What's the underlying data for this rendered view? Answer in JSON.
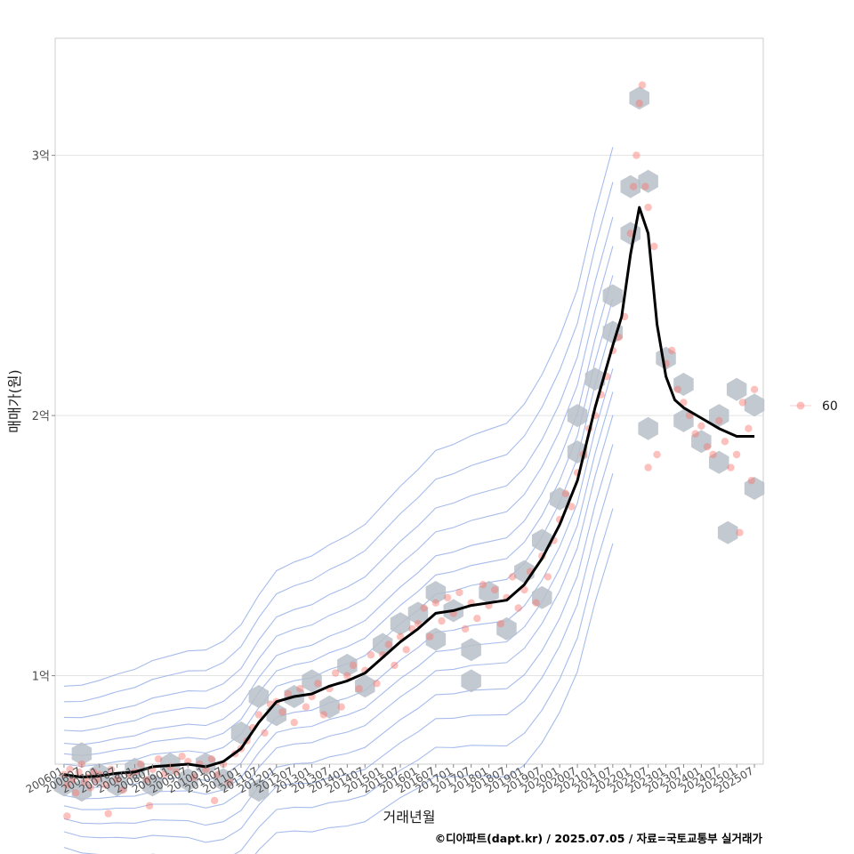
{
  "chart_data": {
    "type": "scatter",
    "xlabel": "거래년월",
    "ylabel": "매매가(원)",
    "caption": "©디아파트(dapt.kr) / 2025.07.05 / 자료=국토교통부 실거래가",
    "x_tick_labels": [
      "200601",
      "200607",
      "200701",
      "200707",
      "200801",
      "200807",
      "200901",
      "200907",
      "201001",
      "201007",
      "201101",
      "201107",
      "201201",
      "201207",
      "201301",
      "201307",
      "201401",
      "201407",
      "201501",
      "201507",
      "201601",
      "201607",
      "201701",
      "201707",
      "201801",
      "201807",
      "201901",
      "201907",
      "202001",
      "202007",
      "202101",
      "202107",
      "202201",
      "202207",
      "202301",
      "202307",
      "202401",
      "202407",
      "202501",
      "202507"
    ],
    "y_ticks": [
      {
        "value": 100000000,
        "label": "1억"
      },
      {
        "value": 200000000,
        "label": "2억"
      },
      {
        "value": 300000000,
        "label": "3억"
      }
    ],
    "xlim": [
      "2005-10",
      "2025-10"
    ],
    "ylim": [
      66000000,
      345000000
    ],
    "grid": true,
    "legend_position": "right",
    "legend": [
      {
        "name": "60",
        "color": "#f8766d"
      }
    ],
    "colors": {
      "points": "#f8766d",
      "trend": "#000000",
      "hex": "#b8c0c8",
      "contour": "#8aa6e6"
    },
    "trend_line": {
      "x": [
        "2006-01",
        "2006-07",
        "2007-01",
        "2007-07",
        "2008-01",
        "2008-07",
        "2009-01",
        "2009-07",
        "2010-01",
        "2010-07",
        "2011-01",
        "2011-07",
        "2012-01",
        "2012-07",
        "2013-01",
        "2013-07",
        "2014-01",
        "2014-07",
        "2015-01",
        "2015-07",
        "2016-01",
        "2016-07",
        "2017-01",
        "2017-07",
        "2018-01",
        "2018-07",
        "2019-01",
        "2019-07",
        "2020-01",
        "2020-07",
        "2021-01",
        "2021-07",
        "2021-10",
        "2022-01",
        "2022-04",
        "2022-07",
        "2022-10",
        "2023-01",
        "2023-04",
        "2023-07",
        "2024-01",
        "2024-07",
        "2025-01",
        "2025-07"
      ],
      "y": [
        62000000,
        61000000,
        61500000,
        62500000,
        63000000,
        65000000,
        65500000,
        66000000,
        65000000,
        67000000,
        72000000,
        82000000,
        90000000,
        92000000,
        93000000,
        96000000,
        98000000,
        101000000,
        107000000,
        113000000,
        118000000,
        124000000,
        125000000,
        127000000,
        128000000,
        129000000,
        135000000,
        145000000,
        158000000,
        175000000,
        203000000,
        227000000,
        238000000,
        262000000,
        280000000,
        270000000,
        235000000,
        215000000,
        206000000,
        203000000,
        199000000,
        195000000,
        192000000,
        192000000
      ]
    },
    "series": [
      {
        "name": "60",
        "points": [
          {
            "x": "2006-01",
            "y": 62000000
          },
          {
            "x": "2006-02",
            "y": 58000000
          },
          {
            "x": "2006-03",
            "y": 64000000
          },
          {
            "x": "2006-04",
            "y": 60000000
          },
          {
            "x": "2006-05",
            "y": 55000000
          },
          {
            "x": "2006-06",
            "y": 63000000
          },
          {
            "x": "2006-07",
            "y": 66000000
          },
          {
            "x": "2006-08",
            "y": 59000000
          },
          {
            "x": "2006-09",
            "y": 61000000
          },
          {
            "x": "2006-10",
            "y": 57000000
          },
          {
            "x": "2006-11",
            "y": 63000000
          },
          {
            "x": "2006-12",
            "y": 60000000
          },
          {
            "x": "2006-02",
            "y": 46000000
          },
          {
            "x": "2007-01",
            "y": 62000000
          },
          {
            "x": "2007-03",
            "y": 58000000
          },
          {
            "x": "2007-05",
            "y": 64000000
          },
          {
            "x": "2007-07",
            "y": 60000000
          },
          {
            "x": "2007-09",
            "y": 56000000
          },
          {
            "x": "2007-11",
            "y": 62000000
          },
          {
            "x": "2007-04",
            "y": 47000000
          },
          {
            "x": "2008-01",
            "y": 63000000
          },
          {
            "x": "2008-03",
            "y": 66000000
          },
          {
            "x": "2008-05",
            "y": 60000000
          },
          {
            "x": "2008-07",
            "y": 64000000
          },
          {
            "x": "2008-09",
            "y": 68000000
          },
          {
            "x": "2008-11",
            "y": 62000000
          },
          {
            "x": "2008-06",
            "y": 50000000
          },
          {
            "x": "2009-01",
            "y": 65000000
          },
          {
            "x": "2009-03",
            "y": 63000000
          },
          {
            "x": "2009-05",
            "y": 69000000
          },
          {
            "x": "2009-07",
            "y": 67000000
          },
          {
            "x": "2009-09",
            "y": 61000000
          },
          {
            "x": "2009-11",
            "y": 66000000
          },
          {
            "x": "2010-01",
            "y": 64000000
          },
          {
            "x": "2010-03",
            "y": 68000000
          },
          {
            "x": "2010-05",
            "y": 62000000
          },
          {
            "x": "2010-07",
            "y": 66000000
          },
          {
            "x": "2010-09",
            "y": 59000000
          },
          {
            "x": "2010-11",
            "y": 70000000
          },
          {
            "x": "2010-04",
            "y": 52000000
          },
          {
            "x": "2011-01",
            "y": 72000000
          },
          {
            "x": "2011-03",
            "y": 75000000
          },
          {
            "x": "2011-05",
            "y": 80000000
          },
          {
            "x": "2011-07",
            "y": 85000000
          },
          {
            "x": "2011-09",
            "y": 78000000
          },
          {
            "x": "2011-11",
            "y": 89000000
          },
          {
            "x": "2012-01",
            "y": 90000000
          },
          {
            "x": "2012-03",
            "y": 86000000
          },
          {
            "x": "2012-05",
            "y": 93000000
          },
          {
            "x": "2012-07",
            "y": 82000000
          },
          {
            "x": "2012-09",
            "y": 95000000
          },
          {
            "x": "2012-11",
            "y": 88000000
          },
          {
            "x": "2013-01",
            "y": 92000000
          },
          {
            "x": "2013-03",
            "y": 97000000
          },
          {
            "x": "2013-05",
            "y": 85000000
          },
          {
            "x": "2013-07",
            "y": 95000000
          },
          {
            "x": "2013-09",
            "y": 101000000
          },
          {
            "x": "2013-11",
            "y": 88000000
          },
          {
            "x": "2014-01",
            "y": 100000000
          },
          {
            "x": "2014-03",
            "y": 104000000
          },
          {
            "x": "2014-05",
            "y": 95000000
          },
          {
            "x": "2014-07",
            "y": 102000000
          },
          {
            "x": "2014-09",
            "y": 108000000
          },
          {
            "x": "2014-11",
            "y": 97000000
          },
          {
            "x": "2015-01",
            "y": 108000000
          },
          {
            "x": "2015-03",
            "y": 112000000
          },
          {
            "x": "2015-05",
            "y": 104000000
          },
          {
            "x": "2015-07",
            "y": 115000000
          },
          {
            "x": "2015-09",
            "y": 110000000
          },
          {
            "x": "2015-11",
            "y": 118000000
          },
          {
            "x": "2016-01",
            "y": 120000000
          },
          {
            "x": "2016-03",
            "y": 126000000
          },
          {
            "x": "2016-05",
            "y": 115000000
          },
          {
            "x": "2016-07",
            "y": 128000000
          },
          {
            "x": "2016-09",
            "y": 121000000
          },
          {
            "x": "2016-11",
            "y": 130000000
          },
          {
            "x": "2017-01",
            "y": 124000000
          },
          {
            "x": "2017-03",
            "y": 132000000
          },
          {
            "x": "2017-05",
            "y": 118000000
          },
          {
            "x": "2017-07",
            "y": 128000000
          },
          {
            "x": "2017-09",
            "y": 122000000
          },
          {
            "x": "2017-11",
            "y": 135000000
          },
          {
            "x": "2018-01",
            "y": 127000000
          },
          {
            "x": "2018-03",
            "y": 133000000
          },
          {
            "x": "2018-05",
            "y": 120000000
          },
          {
            "x": "2018-07",
            "y": 130000000
          },
          {
            "x": "2018-09",
            "y": 138000000
          },
          {
            "x": "2018-11",
            "y": 126000000
          },
          {
            "x": "2019-01",
            "y": 133000000
          },
          {
            "x": "2019-03",
            "y": 140000000
          },
          {
            "x": "2019-05",
            "y": 128000000
          },
          {
            "x": "2019-07",
            "y": 146000000
          },
          {
            "x": "2019-09",
            "y": 138000000
          },
          {
            "x": "2019-11",
            "y": 152000000
          },
          {
            "x": "2020-01",
            "y": 160000000
          },
          {
            "x": "2020-03",
            "y": 170000000
          },
          {
            "x": "2020-05",
            "y": 165000000
          },
          {
            "x": "2020-07",
            "y": 178000000
          },
          {
            "x": "2020-09",
            "y": 185000000
          },
          {
            "x": "2020-11",
            "y": 195000000
          },
          {
            "x": "2021-01",
            "y": 200000000
          },
          {
            "x": "2021-03",
            "y": 208000000
          },
          {
            "x": "2021-05",
            "y": 215000000
          },
          {
            "x": "2021-07",
            "y": 225000000
          },
          {
            "x": "2021-09",
            "y": 230000000
          },
          {
            "x": "2021-11",
            "y": 238000000
          },
          {
            "x": "2022-01",
            "y": 270000000
          },
          {
            "x": "2022-02",
            "y": 288000000
          },
          {
            "x": "2022-03",
            "y": 300000000
          },
          {
            "x": "2022-04",
            "y": 320000000
          },
          {
            "x": "2022-05",
            "y": 327000000
          },
          {
            "x": "2022-06",
            "y": 288000000
          },
          {
            "x": "2022-07",
            "y": 280000000
          },
          {
            "x": "2022-09",
            "y": 265000000
          },
          {
            "x": "2023-01",
            "y": 220000000
          },
          {
            "x": "2023-03",
            "y": 225000000
          },
          {
            "x": "2023-05",
            "y": 210000000
          },
          {
            "x": "2023-07",
            "y": 205000000
          },
          {
            "x": "2023-09",
            "y": 200000000
          },
          {
            "x": "2023-11",
            "y": 193000000
          },
          {
            "x": "2024-01",
            "y": 196000000
          },
          {
            "x": "2024-03",
            "y": 188000000
          },
          {
            "x": "2024-05",
            "y": 185000000
          },
          {
            "x": "2024-07",
            "y": 198000000
          },
          {
            "x": "2024-09",
            "y": 190000000
          },
          {
            "x": "2024-11",
            "y": 180000000
          },
          {
            "x": "2025-01",
            "y": 185000000
          },
          {
            "x": "2025-03",
            "y": 205000000
          },
          {
            "x": "2025-05",
            "y": 195000000
          },
          {
            "x": "2025-07",
            "y": 210000000
          },
          {
            "x": "2025-02",
            "y": 155000000
          },
          {
            "x": "2025-06",
            "y": 175000000
          },
          {
            "x": "2022-07",
            "y": 180000000
          },
          {
            "x": "2022-10",
            "y": 185000000
          }
        ]
      }
    ],
    "hexbins": [
      {
        "x": "2006-01",
        "y": 58000000
      },
      {
        "x": "2006-07",
        "y": 56000000
      },
      {
        "x": "2006-07",
        "y": 70000000
      },
      {
        "x": "2007-01",
        "y": 62000000
      },
      {
        "x": "2007-07",
        "y": 58000000
      },
      {
        "x": "2008-01",
        "y": 64000000
      },
      {
        "x": "2008-07",
        "y": 58000000
      },
      {
        "x": "2009-01",
        "y": 66000000
      },
      {
        "x": "2009-07",
        "y": 60000000
      },
      {
        "x": "2010-01",
        "y": 66000000
      },
      {
        "x": "2010-07",
        "y": 60000000
      },
      {
        "x": "2011-01",
        "y": 78000000
      },
      {
        "x": "2011-07",
        "y": 92000000
      },
      {
        "x": "2011-07",
        "y": 56000000
      },
      {
        "x": "2012-01",
        "y": 85000000
      },
      {
        "x": "2012-07",
        "y": 92000000
      },
      {
        "x": "2013-01",
        "y": 98000000
      },
      {
        "x": "2013-07",
        "y": 88000000
      },
      {
        "x": "2014-01",
        "y": 104000000
      },
      {
        "x": "2014-07",
        "y": 96000000
      },
      {
        "x": "2015-01",
        "y": 112000000
      },
      {
        "x": "2015-07",
        "y": 120000000
      },
      {
        "x": "2016-01",
        "y": 124000000
      },
      {
        "x": "2016-07",
        "y": 132000000
      },
      {
        "x": "2016-07",
        "y": 114000000
      },
      {
        "x": "2017-01",
        "y": 125000000
      },
      {
        "x": "2017-07",
        "y": 110000000
      },
      {
        "x": "2017-07",
        "y": 98000000
      },
      {
        "x": "2018-01",
        "y": 132000000
      },
      {
        "x": "2018-07",
        "y": 118000000
      },
      {
        "x": "2019-01",
        "y": 140000000
      },
      {
        "x": "2019-07",
        "y": 152000000
      },
      {
        "x": "2019-07",
        "y": 130000000
      },
      {
        "x": "2020-01",
        "y": 168000000
      },
      {
        "x": "2020-07",
        "y": 186000000
      },
      {
        "x": "2020-07",
        "y": 200000000
      },
      {
        "x": "2021-01",
        "y": 214000000
      },
      {
        "x": "2021-07",
        "y": 232000000
      },
      {
        "x": "2021-07",
        "y": 246000000
      },
      {
        "x": "2022-01",
        "y": 270000000
      },
      {
        "x": "2022-01",
        "y": 288000000
      },
      {
        "x": "2022-04",
        "y": 322000000
      },
      {
        "x": "2022-07",
        "y": 290000000
      },
      {
        "x": "2022-07",
        "y": 195000000
      },
      {
        "x": "2023-01",
        "y": 222000000
      },
      {
        "x": "2023-07",
        "y": 212000000
      },
      {
        "x": "2023-07",
        "y": 198000000
      },
      {
        "x": "2024-01",
        "y": 190000000
      },
      {
        "x": "2024-07",
        "y": 200000000
      },
      {
        "x": "2024-07",
        "y": 182000000
      },
      {
        "x": "2025-01",
        "y": 210000000
      },
      {
        "x": "2025-07",
        "y": 204000000
      },
      {
        "x": "2025-07",
        "y": 172000000
      },
      {
        "x": "2024-10",
        "y": 155000000
      }
    ]
  }
}
